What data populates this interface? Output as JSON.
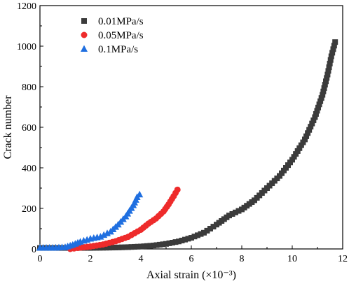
{
  "chart_data": {
    "type": "scatter",
    "xlabel": "Axial strain (×10⁻³)",
    "ylabel": "Crack number",
    "xlim": [
      0,
      12
    ],
    "ylim": [
      0,
      1200
    ],
    "xticks": [
      0,
      2,
      4,
      6,
      8,
      10,
      12
    ],
    "yticks": [
      0,
      200,
      400,
      600,
      800,
      1000,
      1200
    ],
    "grid": false,
    "legend_position": "top-left",
    "series": [
      {
        "name": "0.01MPa/s",
        "marker": "square",
        "color": "#3b3b3b",
        "points": [
          [
            0.0,
            5
          ],
          [
            0.5,
            5
          ],
          [
            1.0,
            5
          ],
          [
            1.5,
            5
          ],
          [
            2.0,
            5
          ],
          [
            2.5,
            6
          ],
          [
            3.0,
            7
          ],
          [
            3.5,
            9
          ],
          [
            4.0,
            12
          ],
          [
            4.5,
            17
          ],
          [
            5.0,
            25
          ],
          [
            5.5,
            37
          ],
          [
            6.0,
            55
          ],
          [
            6.5,
            80
          ],
          [
            7.0,
            120
          ],
          [
            7.5,
            165
          ],
          [
            8.0,
            195
          ],
          [
            8.5,
            240
          ],
          [
            9.0,
            300
          ],
          [
            9.5,
            360
          ],
          [
            10.0,
            440
          ],
          [
            10.5,
            540
          ],
          [
            10.9,
            650
          ],
          [
            11.2,
            760
          ],
          [
            11.4,
            860
          ],
          [
            11.55,
            950
          ],
          [
            11.7,
            1020
          ]
        ]
      },
      {
        "name": "0.05MPa/s",
        "marker": "circle",
        "color": "#ee2b2b",
        "points": [
          [
            1.2,
            0
          ],
          [
            1.5,
            5
          ],
          [
            2.0,
            12
          ],
          [
            2.5,
            22
          ],
          [
            3.0,
            38
          ],
          [
            3.5,
            60
          ],
          [
            4.0,
            95
          ],
          [
            4.3,
            125
          ],
          [
            4.6,
            150
          ],
          [
            4.9,
            185
          ],
          [
            5.1,
            220
          ],
          [
            5.3,
            260
          ],
          [
            5.45,
            292
          ]
        ]
      },
      {
        "name": "0.1MPa/s",
        "marker": "triangle",
        "color": "#1f6fe0",
        "points": [
          [
            0.0,
            5
          ],
          [
            0.5,
            5
          ],
          [
            1.0,
            8
          ],
          [
            1.3,
            20
          ],
          [
            1.6,
            35
          ],
          [
            2.0,
            50
          ],
          [
            2.4,
            60
          ],
          [
            2.8,
            85
          ],
          [
            3.1,
            120
          ],
          [
            3.4,
            160
          ],
          [
            3.7,
            215
          ],
          [
            3.85,
            255
          ],
          [
            3.95,
            268
          ]
        ]
      }
    ]
  }
}
